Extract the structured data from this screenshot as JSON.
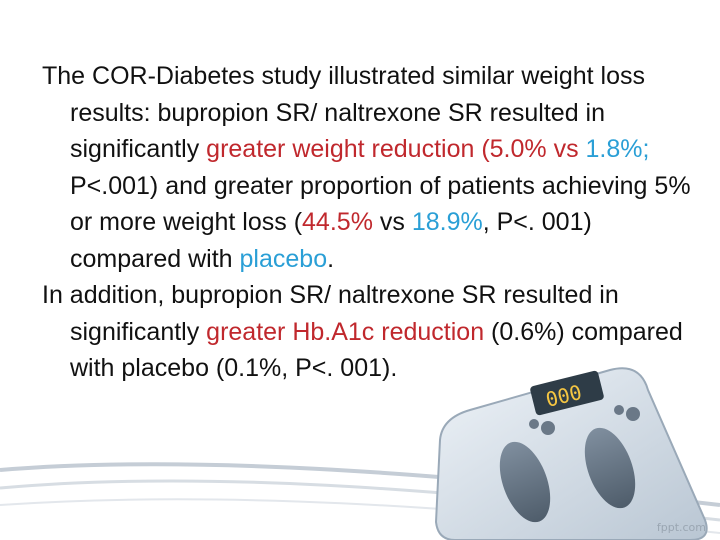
{
  "slide": {
    "paragraphs": [
      {
        "segments": [
          {
            "text": "The COR-Diabetes study illustrated similar weight loss results: bupropion SR/ naltrexone SR resulted in significantly ",
            "color": "default"
          },
          {
            "text": "greater weight reduction (5.0% vs ",
            "color": "red"
          },
          {
            "text": "1.8%;",
            "color": "blue"
          },
          {
            "text": " P<.001) and greater proportion of patients achieving 5% or more weight loss (",
            "color": "default"
          },
          {
            "text": "44.5%",
            "color": "red"
          },
          {
            "text": " vs ",
            "color": "default"
          },
          {
            "text": "18.9%",
            "color": "blue"
          },
          {
            "text": ", P<. 001) compared with ",
            "color": "default"
          },
          {
            "text": "placebo",
            "color": "blue"
          },
          {
            "text": ".",
            "color": "default"
          }
        ]
      },
      {
        "segments": [
          {
            "text": "In addition, bupropion SR/ naltrexone SR resulted in significantly ",
            "color": "default"
          },
          {
            "text": "greater Hb.A1c reduction",
            "color": "red"
          },
          {
            "text": " (0.6%) compared with placebo (0.1%, P<. 001).",
            "color": "default"
          }
        ]
      }
    ]
  },
  "colors": {
    "red": "#c0282d",
    "blue": "#2a9fd6",
    "text": "#111111"
  },
  "decor": {
    "icon": "bathroom-scale-icon"
  },
  "watermark": "fppt.com"
}
